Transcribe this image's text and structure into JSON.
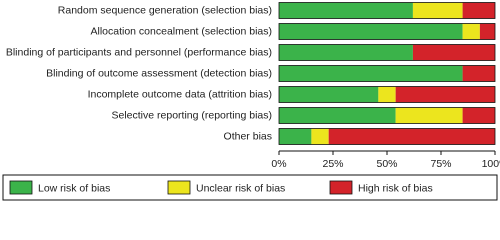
{
  "chart_data": {
    "type": "stacked-bar-horizontal",
    "categories": [
      "Random sequence generation (selection bias)",
      "Allocation concealment (selection bias)",
      "Blinding of participants and personnel (performance bias)",
      "Blinding of outcome assessment (detection bias)",
      "Incomplete outcome data (attrition bias)",
      "Selective reporting (reporting bias)",
      "Other bias"
    ],
    "series": [
      {
        "name": "Low risk of bias",
        "color": "#3bb34a",
        "values": [
          62,
          85,
          62,
          85,
          46,
          54,
          15
        ]
      },
      {
        "name": "Unclear risk of bias",
        "color": "#ece51e",
        "values": [
          23,
          8,
          0,
          0,
          8,
          31,
          8
        ]
      },
      {
        "name": "High risk of bias",
        "color": "#d3232a",
        "values": [
          15,
          7,
          38,
          15,
          46,
          15,
          77
        ]
      }
    ],
    "xlim": [
      0,
      100
    ],
    "xticks": [
      {
        "value": 0,
        "label": "0%"
      },
      {
        "value": 25,
        "label": "25%"
      },
      {
        "value": 50,
        "label": "50%"
      },
      {
        "value": 75,
        "label": "75%"
      },
      {
        "value": 100,
        "label": "100%"
      }
    ],
    "legend": "bottom"
  }
}
